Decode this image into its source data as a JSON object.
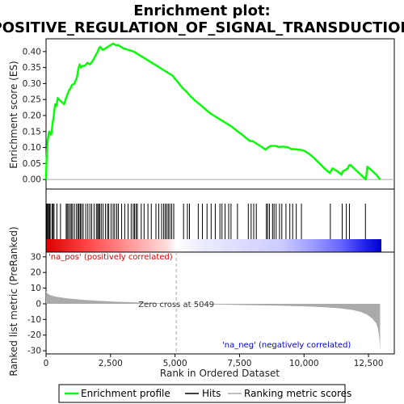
{
  "title_line1": "Enrichment plot:",
  "title_line2": "POSITIVE_REGULATION_OF_SIGNAL_TRANSDUCTION",
  "colors": {
    "es_line": "#00ff00",
    "hits": "#000000",
    "metric_fill": "#aaaaaa",
    "zero_cross": "#aaaaaa",
    "pos_text": "#dd0000",
    "neg_text": "#0000dd"
  },
  "legend": {
    "enrichment_profile": "Enrichment profile",
    "hits": "Hits",
    "ranking_metric": "Ranking metric scores"
  },
  "chart_data": [
    {
      "type": "line",
      "panel": "enrichment",
      "ylabel": "Enrichment score (ES)",
      "xlim": [
        0,
        13500
      ],
      "ylim": [
        -0.03,
        0.44
      ],
      "y_ticks": [
        "0.00",
        "0.05",
        "0.10",
        "0.15",
        "0.20",
        "0.25",
        "0.30",
        "0.35",
        "0.40"
      ],
      "y_tick_values": [
        0,
        0.05,
        0.1,
        0.15,
        0.2,
        0.25,
        0.3,
        0.35,
        0.4
      ],
      "grid": false,
      "x": [
        0,
        20,
        60,
        120,
        200,
        250,
        300,
        320,
        350,
        400,
        450,
        500,
        700,
        800,
        850,
        900,
        950,
        1000,
        1100,
        1200,
        1250,
        1300,
        1350,
        1400,
        1450,
        1500,
        1600,
        1700,
        1800,
        1900,
        2000,
        2050,
        2100,
        2200,
        2300,
        2400,
        2500,
        2600,
        2700,
        2800,
        3000,
        3200,
        3400,
        3500,
        3600,
        3700,
        3900,
        4100,
        4300,
        4500,
        4700,
        4900,
        5000,
        5100,
        5200,
        5300,
        5400,
        5600,
        5800,
        6000,
        6200,
        6400,
        6600,
        6800,
        7000,
        7200,
        7400,
        7600,
        7800,
        7900,
        8000,
        8200,
        8400,
        8500,
        8600,
        8700,
        8900,
        9000,
        9200,
        9400,
        9500,
        9600,
        9800,
        9900,
        10000,
        10200,
        10400,
        10600,
        10800,
        11000,
        11100,
        11300,
        11450,
        11500,
        11600,
        11700,
        11750,
        11800,
        12000,
        12200,
        12400,
        12450,
        12600,
        12800,
        12950
      ],
      "y": [
        0.0,
        0.06,
        0.12,
        0.15,
        0.14,
        0.175,
        0.2,
        0.215,
        0.235,
        0.23,
        0.255,
        0.25,
        0.235,
        0.26,
        0.27,
        0.28,
        0.285,
        0.295,
        0.3,
        0.32,
        0.345,
        0.36,
        0.35,
        0.355,
        0.355,
        0.355,
        0.365,
        0.36,
        0.37,
        0.385,
        0.4,
        0.41,
        0.415,
        0.405,
        0.41,
        0.415,
        0.42,
        0.425,
        0.42,
        0.42,
        0.41,
        0.405,
        0.4,
        0.395,
        0.39,
        0.385,
        0.375,
        0.365,
        0.355,
        0.345,
        0.335,
        0.325,
        0.315,
        0.305,
        0.295,
        0.285,
        0.278,
        0.26,
        0.245,
        0.232,
        0.218,
        0.205,
        0.195,
        0.185,
        0.175,
        0.165,
        0.152,
        0.14,
        0.127,
        0.12,
        0.12,
        0.11,
        0.1,
        0.093,
        0.1,
        0.105,
        0.105,
        0.102,
        0.103,
        0.1,
        0.095,
        0.095,
        0.093,
        0.092,
        0.09,
        0.08,
        0.066,
        0.05,
        0.034,
        0.02,
        0.035,
        0.025,
        0.015,
        0.025,
        0.03,
        0.035,
        0.045,
        0.045,
        0.03,
        0.015,
        0.0,
        0.04,
        0.03,
        0.015,
        0.0
      ]
    },
    {
      "type": "scatter",
      "panel": "hits",
      "description_free": true,
      "x": [
        30,
        60,
        100,
        130,
        160,
        230,
        270,
        310,
        420,
        560,
        780,
        820,
        870,
        930,
        980,
        1030,
        1100,
        1180,
        1240,
        1280,
        1330,
        1380,
        1440,
        1540,
        1620,
        1700,
        1770,
        1860,
        1950,
        2000,
        2040,
        2080,
        2140,
        2210,
        2300,
        2380,
        2430,
        2520,
        2600,
        2660,
        2740,
        2800,
        2930,
        3050,
        3180,
        3300,
        3380,
        3430,
        3490,
        3540,
        3690,
        3800,
        3950,
        4080,
        4260,
        4370,
        4480,
        4560,
        4620,
        4680,
        4740,
        4800,
        4870,
        4950,
        5330,
        5480,
        5560,
        5900,
        6060,
        6240,
        6400,
        6560,
        6740,
        6820,
        6940,
        7080,
        7170,
        7420,
        7840,
        7950,
        8050,
        8150,
        8540,
        8590,
        8660,
        8780,
        8840,
        8920,
        9050,
        9140,
        9300,
        9450,
        9560,
        9700,
        9900,
        11020,
        11480,
        11640,
        11760,
        12380
      ]
    },
    {
      "type": "area",
      "panel": "ranked_metric",
      "ylabel": "Ranked list metric (PreRanked)",
      "xlabel": "Rank in Ordered Dataset",
      "xlim": [
        0,
        13500
      ],
      "ylim": [
        -32,
        33
      ],
      "x_ticks": [
        "0",
        "2,500",
        "5,000",
        "7,500",
        "10,000",
        "12,500"
      ],
      "x_tick_values": [
        0,
        2500,
        5000,
        7500,
        10000,
        12500
      ],
      "y_ticks": [
        "30",
        "20",
        "10",
        "0",
        "-10",
        "-20",
        "-30"
      ],
      "y_tick_values": [
        30,
        20,
        10,
        0,
        -10,
        -20,
        -30
      ],
      "zero_cross_rank": 5049,
      "zero_cross_label": "Zero cross at 5049",
      "pos_label": "'na_pos' (positively correlated)",
      "neg_label": "'na_neg' (negatively correlated)",
      "x": [
        0,
        30,
        100,
        200,
        400,
        800,
        1500,
        2500,
        3500,
        4500,
        5049,
        6000,
        7000,
        8000,
        9000,
        10000,
        10800,
        11400,
        11900,
        12200,
        12450,
        12650,
        12800,
        12870,
        12920,
        12950
      ],
      "values": [
        8.0,
        7.0,
        6.0,
        5.3,
        4.5,
        3.5,
        2.4,
        1.5,
        0.9,
        0.4,
        0.0,
        -0.3,
        -0.6,
        -0.9,
        -1.2,
        -1.6,
        -2.2,
        -2.9,
        -4.0,
        -5.2,
        -7.0,
        -9.5,
        -12.5,
        -16.0,
        -22.0,
        -30.0
      ]
    }
  ]
}
